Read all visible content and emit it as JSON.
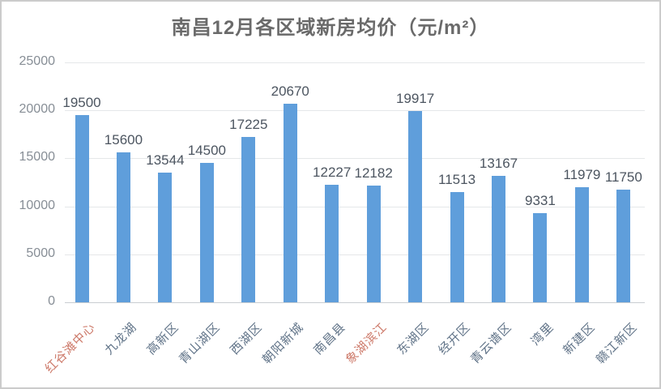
{
  "window": {
    "background": "#ffffff",
    "border_color": "#cbcbcb"
  },
  "chart_data": {
    "type": "bar",
    "title": "南昌12月各区域新房均价（元/m²）",
    "categories": [
      "红谷滩中心",
      "九龙湖",
      "高新区",
      "青山湖区",
      "西湖区",
      "朝阳新城",
      "南昌县",
      "象湖滨江",
      "东湖区",
      "经开区",
      "青云谱区",
      "湾里",
      "新建区",
      "赣江新区"
    ],
    "values": [
      19500,
      15600,
      13544,
      14500,
      17225,
      20670,
      12227,
      12182,
      19917,
      11513,
      13167,
      9331,
      11979,
      11750
    ],
    "highlighted_categories": [
      "红谷滩中心",
      "象湖滨江"
    ],
    "xlabel": "",
    "ylabel": "",
    "ylim": [
      0,
      25000
    ],
    "yticks": [
      0,
      5000,
      10000,
      15000,
      20000,
      25000
    ],
    "grid": true,
    "legend": "none",
    "data_labels": true,
    "colors": {
      "bar": "#5f9edb",
      "title": "#6a6a6a",
      "value_label": "#4c5560",
      "axis_tick": "#878e96",
      "category_label": "#5f7287",
      "category_label_highlight": "#cd7a6a",
      "gridline": "#e5e7e9",
      "baseline": "#c9cdd1"
    }
  }
}
